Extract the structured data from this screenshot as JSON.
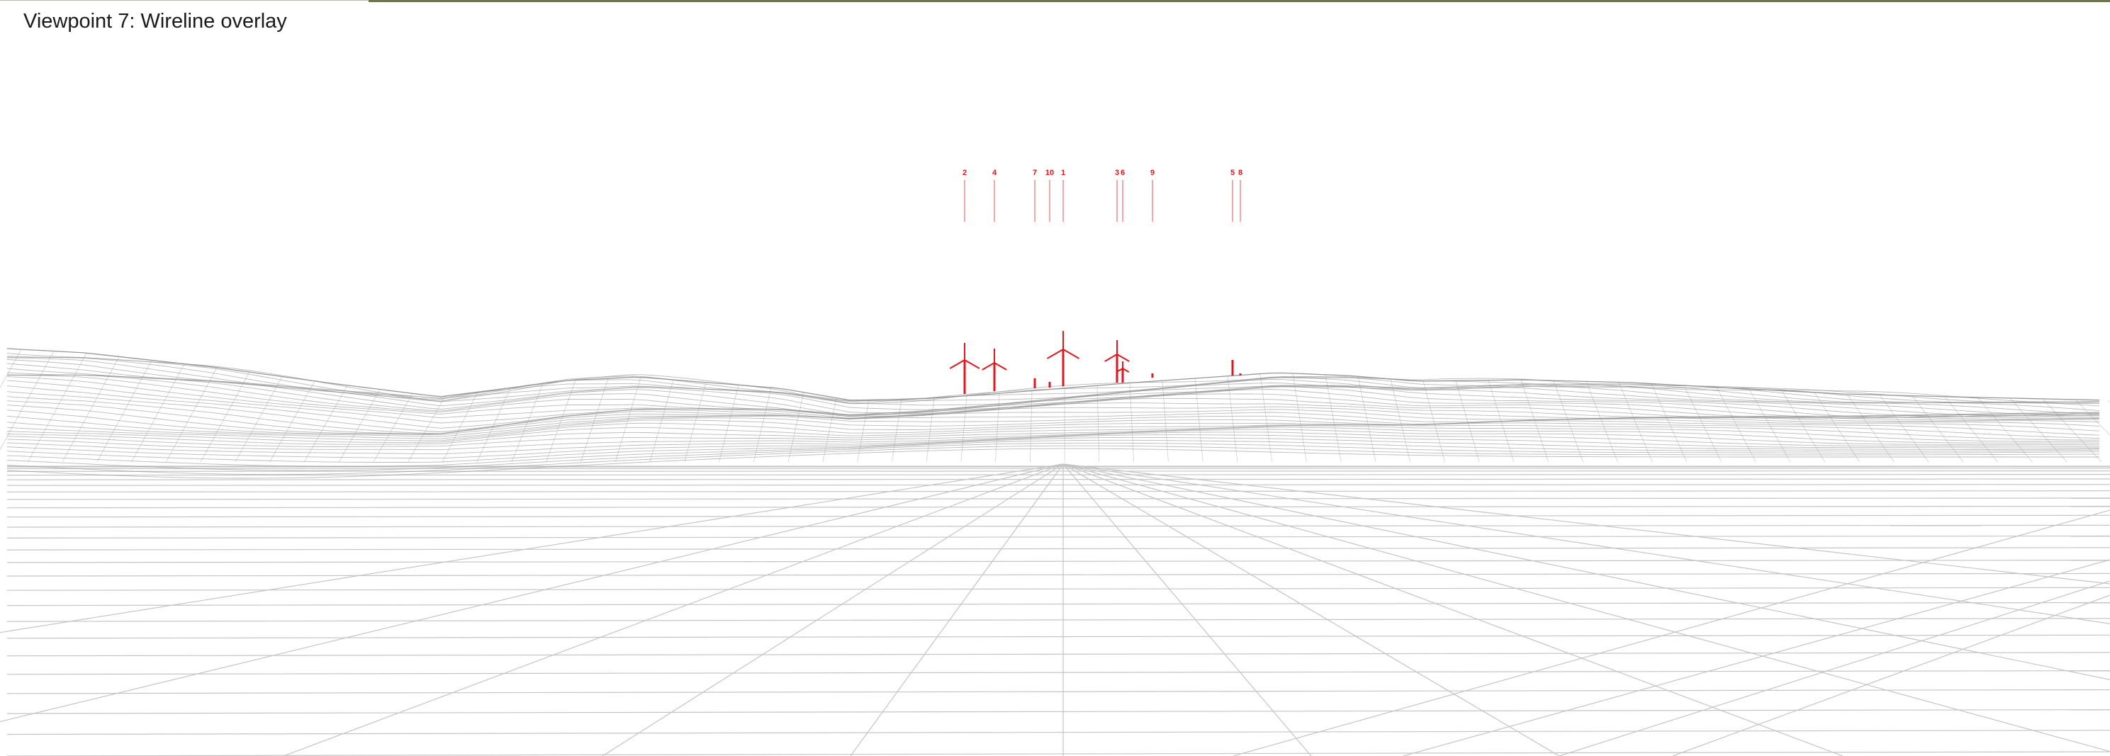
{
  "title": "Viewpoint 7: Wireline overlay",
  "colors": {
    "turbine": "#e3161c",
    "wireframe": "#8c8c8c",
    "ground_grid": "#c4c4c4",
    "background": "#ffffff"
  },
  "turbines": [
    {
      "label": "2"
    },
    {
      "label": "4"
    },
    {
      "label": "7"
    },
    {
      "label": "10"
    },
    {
      "label": "1"
    },
    {
      "label": "3"
    },
    {
      "label": "6"
    },
    {
      "label": "9"
    },
    {
      "label": "5"
    },
    {
      "label": "8"
    }
  ]
}
